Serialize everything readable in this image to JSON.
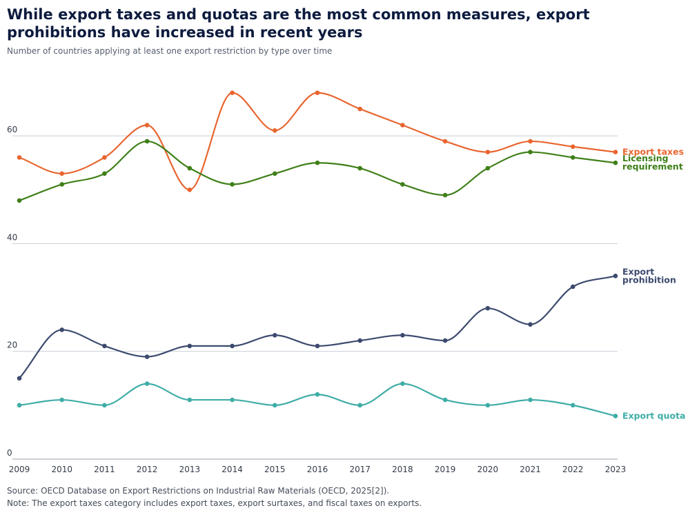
{
  "title": "While export taxes and quotas are the most common measures, export prohibitions have increased in recent years",
  "subtitle": "Number of countries applying at least one export restriction by type over time",
  "source": "Source: OECD Database on Export Restrictions on Industrial Raw Materials (OECD, 2025[2]).",
  "note": "Note: The export taxes category includes export taxes, export surtaxes, and fiscal taxes on exports.",
  "chart_data": {
    "type": "line",
    "title": "While export taxes and quotas are the most common measures, export prohibitions have increased in recent years",
    "subtitle": "Number of countries applying at least one export restriction by type over time",
    "xlabel": "",
    "ylabel": "",
    "x": [
      "2009",
      "2010",
      "2011",
      "2012",
      "2013",
      "2014",
      "2015",
      "2016",
      "2017",
      "2018",
      "2019",
      "2020",
      "2021",
      "2022",
      "2023"
    ],
    "ylim": [
      0,
      70
    ],
    "yticks": [
      0,
      20,
      40,
      60
    ],
    "grid": true,
    "legend": "direct labels at line ends (right)",
    "series": [
      {
        "name": "Export taxes",
        "label_lines": [
          "Export taxes"
        ],
        "color": "#e8652f",
        "values": [
          56,
          53,
          56,
          62,
          50,
          68,
          61,
          68,
          65,
          62,
          59,
          57,
          59,
          58,
          57
        ]
      },
      {
        "name": "Licensing requirement",
        "label_lines": [
          "Licensing",
          "requirement"
        ],
        "color": "#3f7f18",
        "values": [
          48,
          51,
          53,
          59,
          54,
          51,
          53,
          55,
          54,
          51,
          49,
          54,
          57,
          56,
          55
        ]
      },
      {
        "name": "Export prohibition",
        "label_lines": [
          "Export",
          "prohibition"
        ],
        "color": "#3c4a6e",
        "values": [
          15,
          24,
          21,
          19,
          21,
          21,
          23,
          21,
          22,
          23,
          22,
          28,
          25,
          32,
          34
        ]
      },
      {
        "name": "Export quota",
        "label_lines": [
          "Export quota"
        ],
        "color": "#3fada6",
        "values": [
          10,
          11,
          10,
          14,
          11,
          11,
          10,
          12,
          10,
          14,
          11,
          10,
          11,
          10,
          8
        ]
      }
    ]
  }
}
